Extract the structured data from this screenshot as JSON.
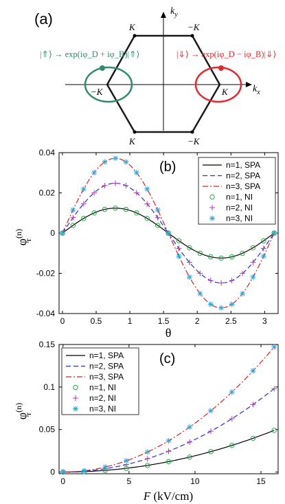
{
  "panel_a": {
    "label": "(a)",
    "ky_label": "k",
    "ky_sub": "y",
    "kx_label": "k",
    "kx_sub": "x",
    "vertex_labels": [
      "K",
      "−K",
      "−K",
      "K",
      "K",
      "−K"
    ],
    "left_formula": "|⇑⟩ → exp(iφ_D + iφ_B)|⇑⟩",
    "right_formula": "|⇓⟩ → exp(iφ_D − iφ_B)|⇓⟩",
    "left_color": "#2e8b6e",
    "right_color": "#e8262f"
  },
  "chart_data": [
    {
      "panel": "(b)",
      "type": "line",
      "xlabel": "θ",
      "ylabel": "φ_r^(n)",
      "xlim": [
        -0.05,
        3.2
      ],
      "ylim": [
        -0.04,
        0.04
      ],
      "xticks": [
        "0",
        "0.5",
        "1",
        "1.5",
        "2",
        "2.5",
        "3"
      ],
      "yticks": [
        "-0.04",
        "-0.02",
        "0",
        "0.02",
        "0.04"
      ],
      "legend_position": "top-right",
      "legend": [
        "n=1, SPA",
        "n=2, SPA",
        "n=3, SPA",
        "n=1, NI",
        "n=2, NI",
        "n=3, NI"
      ],
      "series": [
        {
          "name": "n=1, SPA",
          "style": "solid",
          "color": "#000000",
          "amplitude": 0.0124,
          "function": "A*sin(2θ)"
        },
        {
          "name": "n=2, SPA",
          "style": "dashed",
          "color": "#2b2bd6",
          "amplitude": 0.0248,
          "function": "A*sin(2θ)"
        },
        {
          "name": "n=3, SPA",
          "style": "dashdot",
          "color": "#d62020",
          "amplitude": 0.0372,
          "function": "A*sin(2θ)"
        },
        {
          "name": "n=1, NI",
          "marker": "circle",
          "color": "#22aa44",
          "amplitude": 0.0124
        },
        {
          "name": "n=2, NI",
          "marker": "plus",
          "color": "#b03aa8",
          "amplitude": 0.0248
        },
        {
          "name": "n=3, NI",
          "marker": "asterisk",
          "color": "#2aa7d6",
          "amplitude": 0.0372
        }
      ],
      "marker_x": [
        0,
        0.1571,
        0.3142,
        0.4712,
        0.6283,
        0.7854,
        0.9425,
        1.0996,
        1.2566,
        1.4137,
        1.5708,
        1.7279,
        1.885,
        2.042,
        2.1991,
        2.3562,
        2.5133,
        2.6704,
        2.8274,
        2.9845,
        3.1416
      ]
    },
    {
      "panel": "(c)",
      "type": "line",
      "xlabel": "F (kV/cm)",
      "ylabel": "φ_r^(n)",
      "xlim": [
        -0.3,
        16.3
      ],
      "ylim": [
        -0.002,
        0.15
      ],
      "xticks": [
        "0",
        "5",
        "10",
        "15"
      ],
      "yticks": [
        "0",
        "0.05",
        "0.1",
        "0.15"
      ],
      "legend_position": "top-left",
      "legend": [
        "n=1, SPA",
        "n=2, SPA",
        "n=3, SPA",
        "n=1, NI",
        "n=2, NI",
        "n=3, NI"
      ],
      "series": [
        {
          "name": "n=1, SPA",
          "style": "solid",
          "color": "#000000",
          "value_at_16": 0.049,
          "function": "c*F^2"
        },
        {
          "name": "n=2, SPA",
          "style": "dashed",
          "color": "#2b2bd6",
          "value_at_16": 0.098,
          "function": "c*F^2"
        },
        {
          "name": "n=3, SPA",
          "style": "dashdot",
          "color": "#d62020",
          "value_at_16": 0.147,
          "function": "c*F^2"
        },
        {
          "name": "n=1, NI",
          "marker": "circle",
          "color": "#22aa44",
          "value_at_16": 0.049
        },
        {
          "name": "n=2, NI",
          "marker": "plus",
          "color": "#b03aa8",
          "value_at_16": 0.098
        },
        {
          "name": "n=3, NI",
          "marker": "asterisk",
          "color": "#2aa7d6",
          "value_at_16": 0.147
        }
      ],
      "marker_x": [
        0,
        1.6,
        3.2,
        4.8,
        6.4,
        8.0,
        9.6,
        11.2,
        12.8,
        14.4,
        16.0
      ]
    }
  ]
}
